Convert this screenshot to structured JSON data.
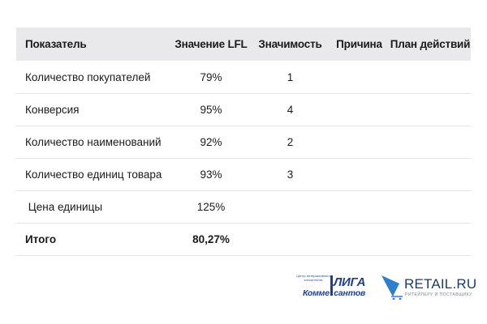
{
  "table": {
    "headers": [
      "Показатель",
      "Значение LFL",
      "Значимость",
      "Причина",
      "План действий"
    ],
    "rows": [
      [
        "Количество покупателей",
        "79%",
        "1",
        "",
        ""
      ],
      [
        "Конверсия",
        "95%",
        "4",
        "",
        ""
      ],
      [
        "Количество наименований",
        "92%",
        "2",
        "",
        ""
      ],
      [
        "Количество единиц товара",
        "93%",
        "3",
        "",
        ""
      ],
      [
        " Цена единицы",
        "125%",
        "",
        "",
        ""
      ],
      [
        "Итого",
        "80,27%",
        "",
        "",
        ""
      ]
    ]
  },
  "logos": {
    "liga": {
      "small_text": "Центр интерактивного консалтинга",
      "big_text": "ЛИГА",
      "bottom_text": "Комме  сантов"
    },
    "retail": {
      "name": "RETAIL.RU",
      "tagline": "РИТЕЙЛЕРУ И ПОСТАВЩИКУ"
    }
  },
  "colors": {
    "header_bg": "#e9e9ec",
    "divider": "#e4e4e6",
    "liga_blue": "#1f3f94",
    "retail_navy": "#1c3c6b",
    "retail_blue": "#2f7fd0"
  }
}
